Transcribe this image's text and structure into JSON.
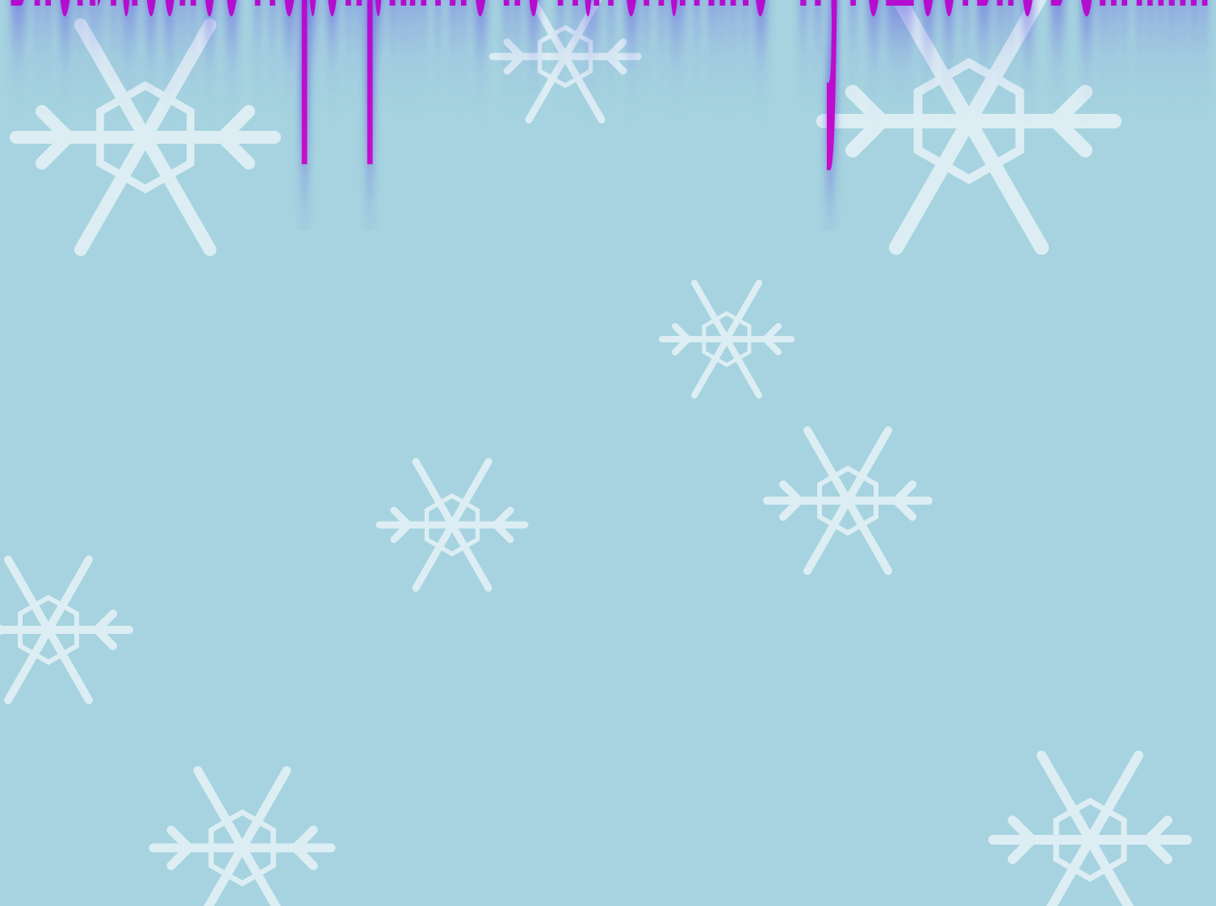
{
  "slide": {
    "title": "Внеклассное мероприятие по математике \"Путешествие в зимний лес\""
  },
  "colors": {
    "background": "#a6d3df",
    "snowflake": "#e8f4f8",
    "title_top": "#6a0fc8",
    "title_bottom": "#c40fd0",
    "title_glow": "#3a2fd8"
  },
  "icons": [
    "snowflake-icon"
  ]
}
